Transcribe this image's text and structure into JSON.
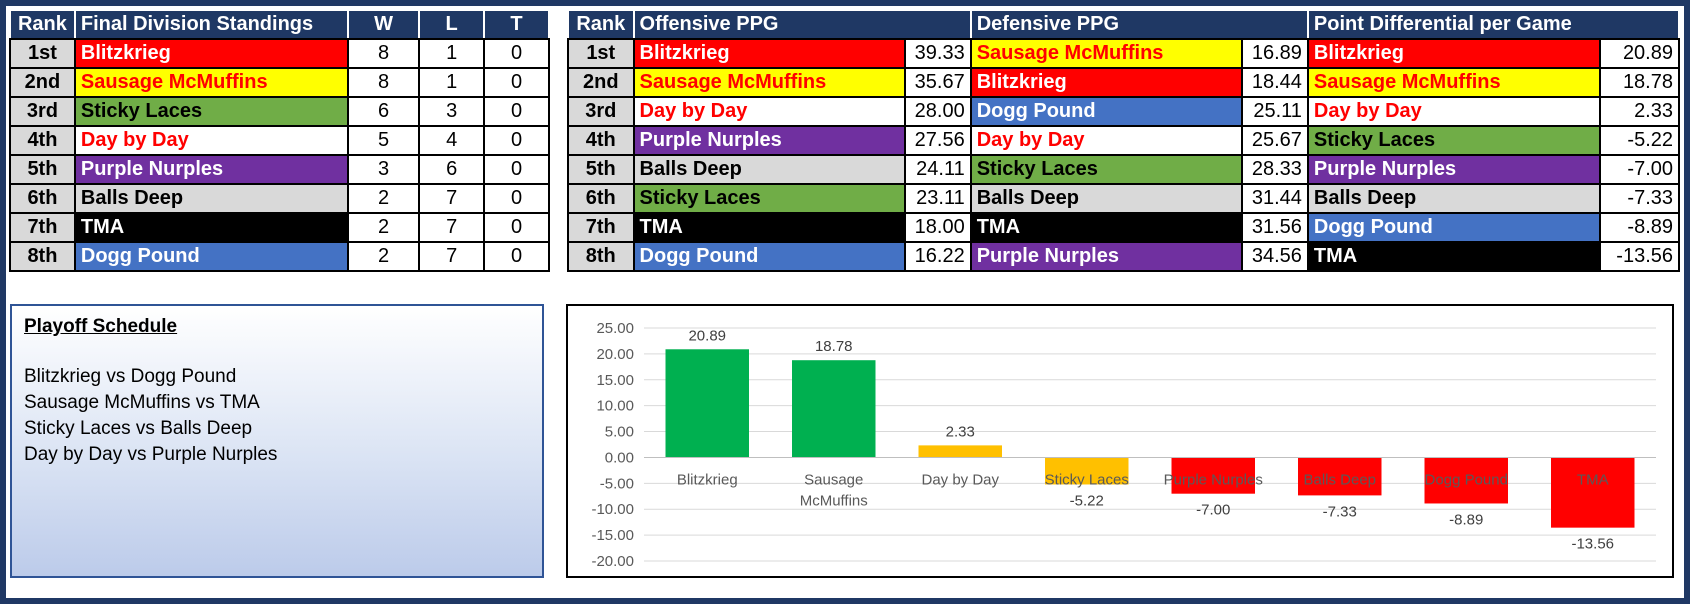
{
  "standings": {
    "headers": [
      "Rank",
      "Final Division Standings",
      "W",
      "L",
      "T"
    ],
    "rows": [
      {
        "rank": "1st",
        "team": "Blitzkrieg",
        "w": "8",
        "l": "1",
        "t": "0",
        "bg": "#ff0000",
        "fg": "#ffffff"
      },
      {
        "rank": "2nd",
        "team": "Sausage McMuffins",
        "w": "8",
        "l": "1",
        "t": "0",
        "bg": "#ffff00",
        "fg": "#ff0000"
      },
      {
        "rank": "3rd",
        "team": "Sticky Laces",
        "w": "6",
        "l": "3",
        "t": "0",
        "bg": "#70ad47",
        "fg": "#000000"
      },
      {
        "rank": "4th",
        "team": "Day by Day",
        "w": "5",
        "l": "4",
        "t": "0",
        "bg": "#ffffff",
        "fg": "#ff0000"
      },
      {
        "rank": "5th",
        "team": "Purple Nurples",
        "w": "3",
        "l": "6",
        "t": "0",
        "bg": "#7030a0",
        "fg": "#ffffff"
      },
      {
        "rank": "6th",
        "team": "Balls Deep",
        "w": "2",
        "l": "7",
        "t": "0",
        "bg": "#d9d9d9",
        "fg": "#000000"
      },
      {
        "rank": "7th",
        "team": "TMA",
        "w": "2",
        "l": "7",
        "t": "0",
        "bg": "#000000",
        "fg": "#ffffff"
      },
      {
        "rank": "8th",
        "team": "Dogg Pound",
        "w": "2",
        "l": "7",
        "t": "0",
        "bg": "#4472c4",
        "fg": "#ffffff"
      }
    ]
  },
  "stats": {
    "headers": [
      "Rank",
      "Offensive PPG",
      "Defensive PPG",
      "Point Differential per Game"
    ],
    "rows": [
      {
        "rank": "1st",
        "off": {
          "team": "Blitzkrieg",
          "val": "39.33",
          "bg": "#ff0000",
          "fg": "#ffffff"
        },
        "def": {
          "team": "Sausage McMuffins",
          "val": "16.89",
          "bg": "#ffff00",
          "fg": "#ff0000"
        },
        "diff": {
          "team": "Blitzkrieg",
          "val": "20.89",
          "bg": "#ff0000",
          "fg": "#ffffff"
        }
      },
      {
        "rank": "2nd",
        "off": {
          "team": "Sausage McMuffins",
          "val": "35.67",
          "bg": "#ffff00",
          "fg": "#ff0000"
        },
        "def": {
          "team": "Blitzkrieg",
          "val": "18.44",
          "bg": "#ff0000",
          "fg": "#ffffff"
        },
        "diff": {
          "team": "Sausage McMuffins",
          "val": "18.78",
          "bg": "#ffff00",
          "fg": "#ff0000"
        }
      },
      {
        "rank": "3rd",
        "off": {
          "team": "Day by Day",
          "val": "28.00",
          "bg": "#ffffff",
          "fg": "#ff0000"
        },
        "def": {
          "team": "Dogg Pound",
          "val": "25.11",
          "bg": "#4472c4",
          "fg": "#ffffff"
        },
        "diff": {
          "team": "Day by Day",
          "val": "2.33",
          "bg": "#ffffff",
          "fg": "#ff0000"
        }
      },
      {
        "rank": "4th",
        "off": {
          "team": "Purple Nurples",
          "val": "27.56",
          "bg": "#7030a0",
          "fg": "#ffffff"
        },
        "def": {
          "team": "Day by Day",
          "val": "25.67",
          "bg": "#ffffff",
          "fg": "#ff0000"
        },
        "diff": {
          "team": "Sticky Laces",
          "val": "-5.22",
          "bg": "#70ad47",
          "fg": "#000000"
        }
      },
      {
        "rank": "5th",
        "off": {
          "team": "Balls Deep",
          "val": "24.11",
          "bg": "#d9d9d9",
          "fg": "#000000"
        },
        "def": {
          "team": "Sticky Laces",
          "val": "28.33",
          "bg": "#70ad47",
          "fg": "#000000"
        },
        "diff": {
          "team": "Purple Nurples",
          "val": "-7.00",
          "bg": "#7030a0",
          "fg": "#ffffff"
        }
      },
      {
        "rank": "6th",
        "off": {
          "team": "Sticky Laces",
          "val": "23.11",
          "bg": "#70ad47",
          "fg": "#000000"
        },
        "def": {
          "team": "Balls Deep",
          "val": "31.44",
          "bg": "#d9d9d9",
          "fg": "#000000"
        },
        "diff": {
          "team": "Balls Deep",
          "val": "-7.33",
          "bg": "#d9d9d9",
          "fg": "#000000"
        }
      },
      {
        "rank": "7th",
        "off": {
          "team": "TMA",
          "val": "18.00",
          "bg": "#000000",
          "fg": "#ffffff"
        },
        "def": {
          "team": "TMA",
          "val": "31.56",
          "bg": "#000000",
          "fg": "#ffffff"
        },
        "diff": {
          "team": "Dogg Pound",
          "val": "-8.89",
          "bg": "#4472c4",
          "fg": "#ffffff"
        }
      },
      {
        "rank": "8th",
        "off": {
          "team": "Dogg Pound",
          "val": "16.22",
          "bg": "#4472c4",
          "fg": "#ffffff"
        },
        "def": {
          "team": "Purple Nurples",
          "val": "34.56",
          "bg": "#7030a0",
          "fg": "#ffffff"
        },
        "diff": {
          "team": "TMA",
          "val": "-13.56",
          "bg": "#000000",
          "fg": "#ffffff"
        }
      }
    ]
  },
  "playoff": {
    "title": "Playoff Schedule",
    "matchups": [
      "Blitzkrieg vs Dogg Pound",
      "Sausage McMuffins vs TMA",
      "Sticky Laces vs Balls Deep",
      "Day by Day vs Purple Nurples"
    ]
  },
  "chart_data": {
    "type": "bar",
    "title": "",
    "xlabel": "",
    "ylabel": "",
    "categories": [
      "Blitzkrieg",
      "Sausage McMuffins",
      "Day by Day",
      "Sticky Laces",
      "Purple Nurples",
      "Balls Deep",
      "Dogg Pound",
      "TMA"
    ],
    "category_label_lines": [
      [
        "Blitzkrieg"
      ],
      [
        "Sausage",
        "McMuffins"
      ],
      [
        "Day by Day"
      ],
      [
        "Sticky Laces"
      ],
      [
        "Purple Nurples"
      ],
      [
        "Balls Deep"
      ],
      [
        "Dogg Pound"
      ],
      [
        "TMA"
      ]
    ],
    "values": [
      20.89,
      18.78,
      2.33,
      -5.22,
      -7.0,
      -7.33,
      -8.89,
      -13.56
    ],
    "value_labels": [
      "20.89",
      "18.78",
      "2.33",
      "-5.22",
      "-7.00",
      "-7.33",
      "-8.89",
      "-13.56"
    ],
    "bar_colors": [
      "#00b050",
      "#00b050",
      "#ffc000",
      "#ffc000",
      "#ff0000",
      "#ff0000",
      "#ff0000",
      "#ff0000"
    ],
    "ylim": [
      -20,
      25
    ],
    "yticks": [
      25,
      20,
      15,
      10,
      5,
      0,
      -5,
      -10,
      -15,
      -20
    ],
    "ytick_labels": [
      "25.00",
      "20.00",
      "15.00",
      "10.00",
      "5.00",
      "0.00",
      "-5.00",
      "-10.00",
      "-15.00",
      "-20.00"
    ],
    "grid": true,
    "legend": "none"
  }
}
